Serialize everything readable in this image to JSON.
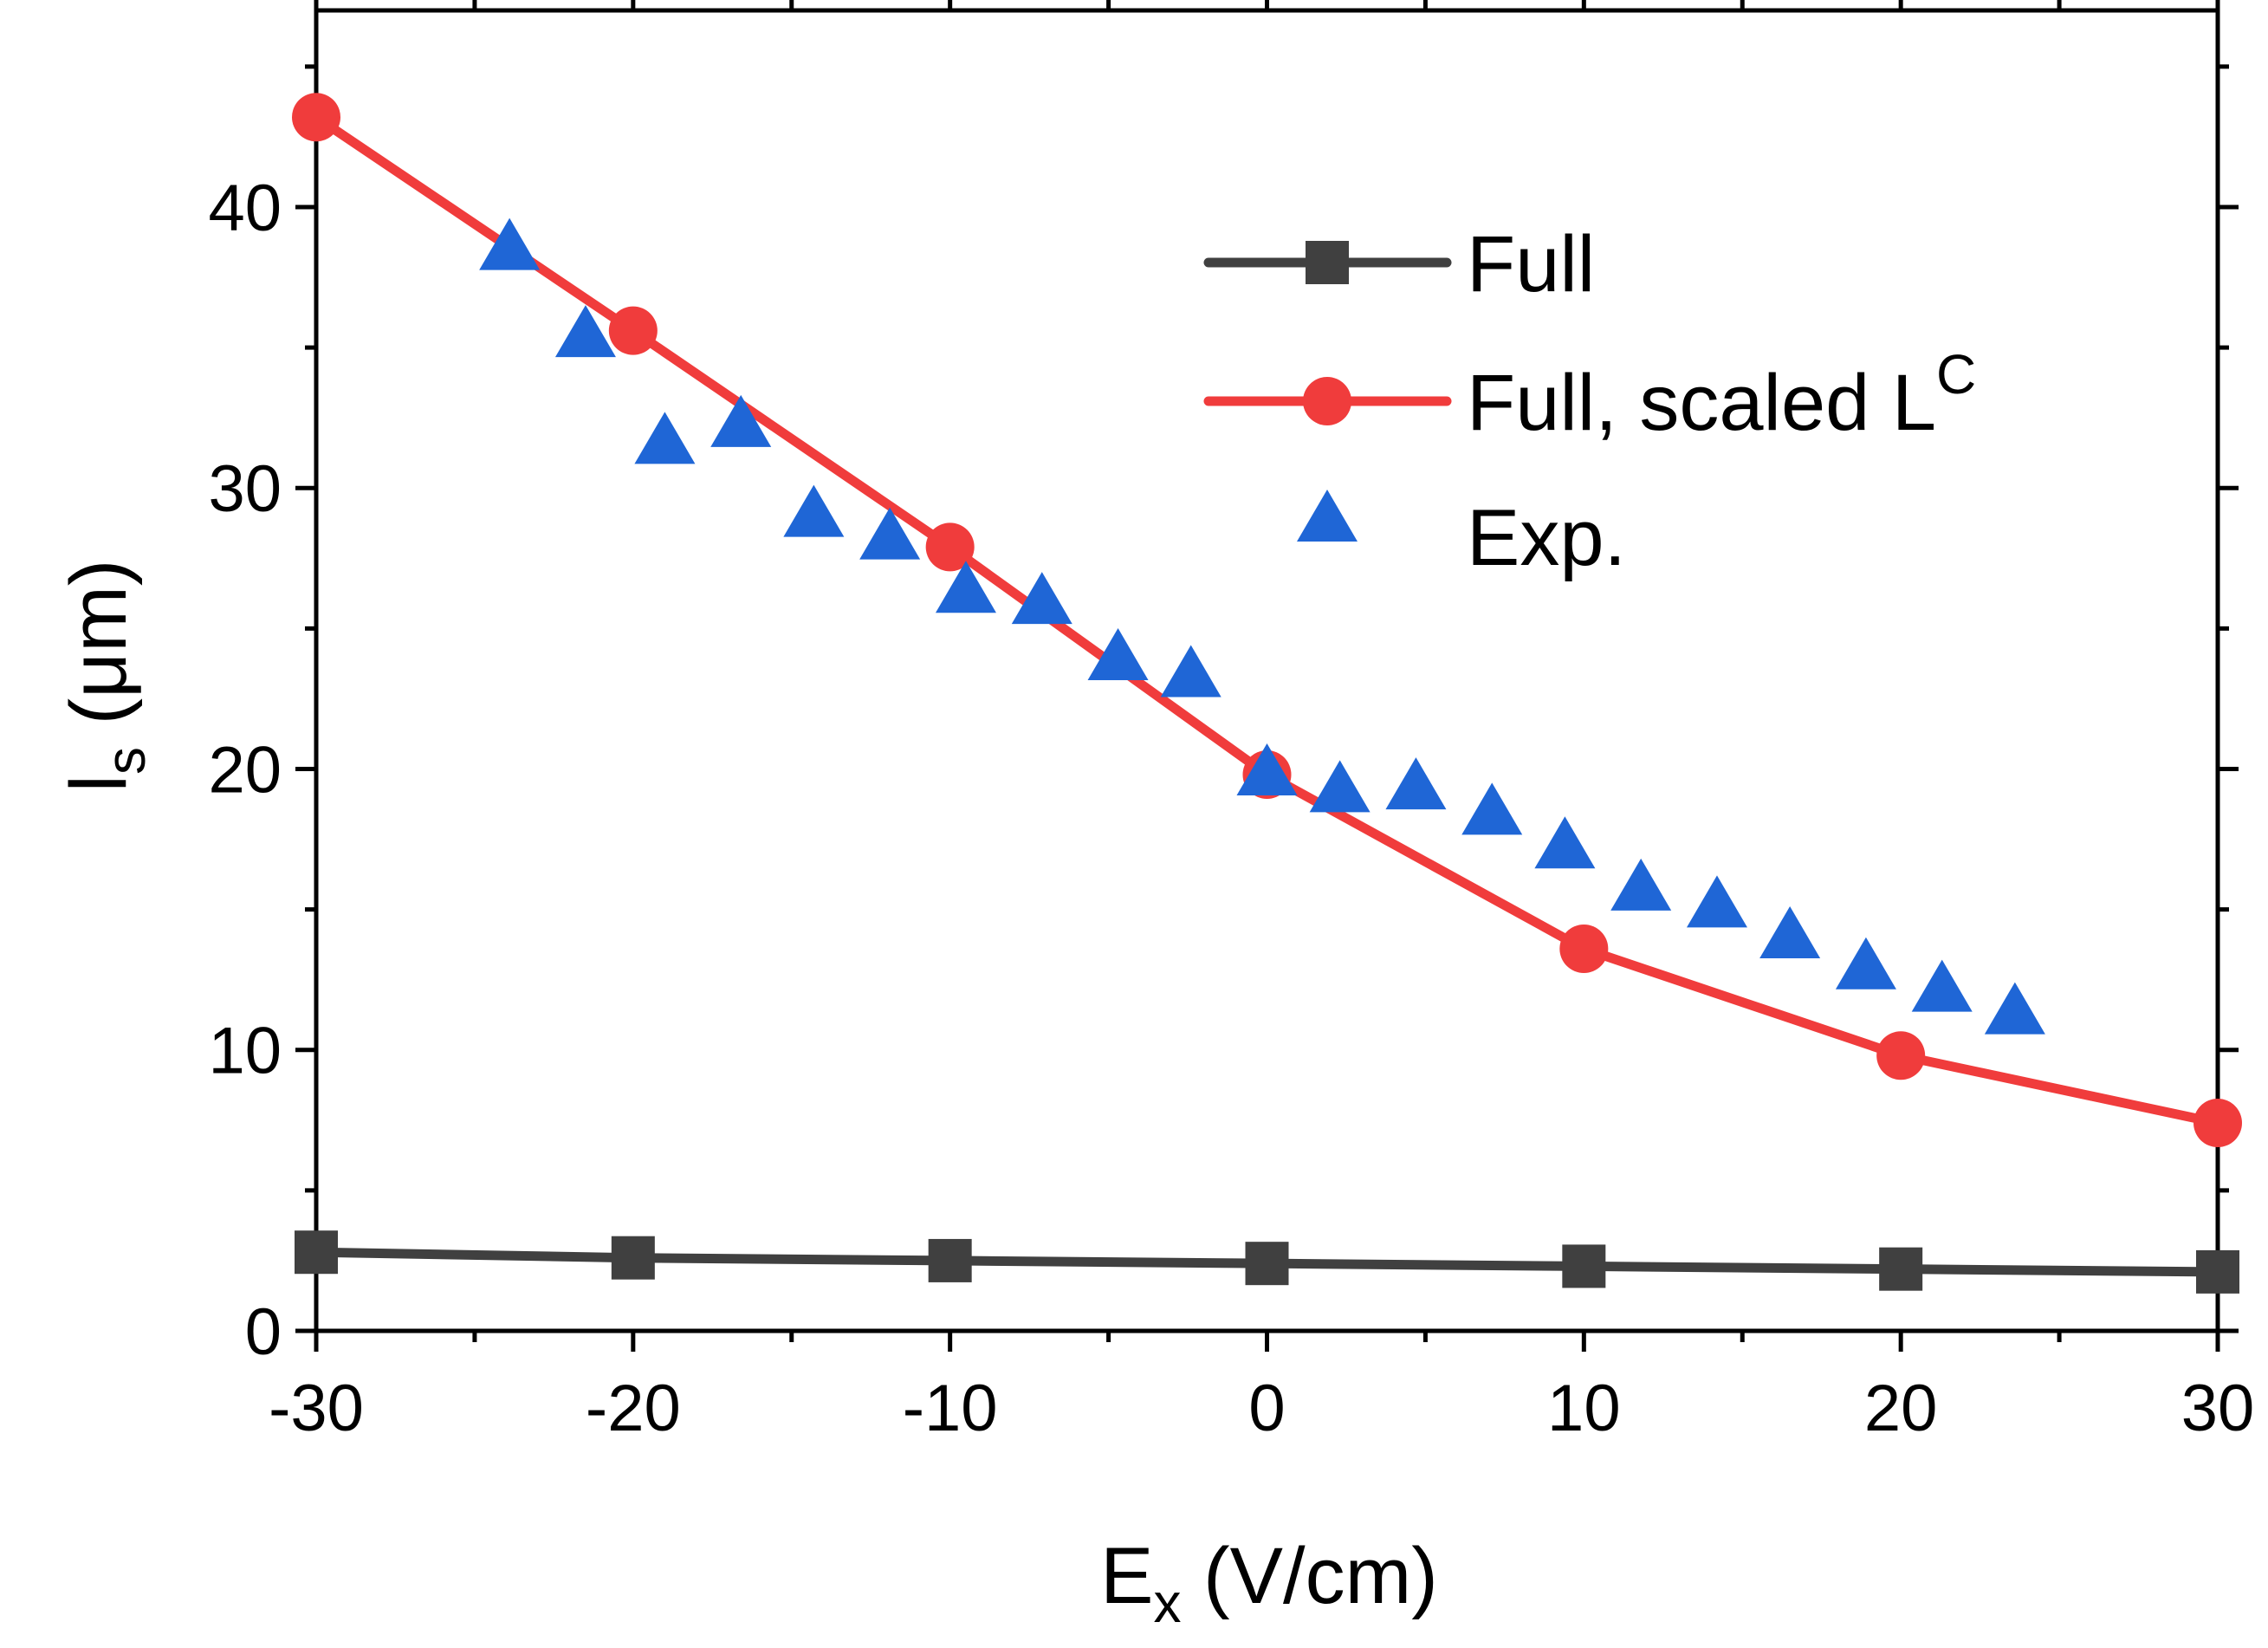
{
  "chart_data": {
    "type": "line",
    "xlabel": {
      "main": "E",
      "sub": "x",
      "rest": " (V/cm)"
    },
    "ylabel": {
      "main": "l",
      "sub": "s",
      "rest": " (μm)"
    },
    "xlim": [
      -30,
      30
    ],
    "ylim": [
      0,
      47
    ],
    "x_ticks": [
      -30,
      -20,
      -10,
      0,
      10,
      20,
      30
    ],
    "x_tick_labels": [
      "-30",
      "-20",
      "-10",
      "0",
      "10",
      "20",
      "30"
    ],
    "y_ticks": [
      0,
      10,
      20,
      30,
      40
    ],
    "y_tick_labels": [
      "0",
      "10",
      "20",
      "30",
      "40"
    ],
    "x_minor_step": 5,
    "y_minor_step": 5,
    "grid": false,
    "legend_position": "top-right",
    "series": [
      {
        "name": "Full",
        "marker": "square",
        "line": true,
        "color": "#404040",
        "x": [
          -30,
          -20,
          -10,
          0,
          10,
          20,
          30
        ],
        "y": [
          2.8,
          2.6,
          2.5,
          2.4,
          2.3,
          2.2,
          2.1
        ]
      },
      {
        "name": "Full, scaled L",
        "name_sup": "C",
        "marker": "circle",
        "line": true,
        "color": "#f03c3c",
        "x": [
          -30,
          -20,
          -10,
          0,
          10,
          20,
          30
        ],
        "y": [
          43.2,
          35.6,
          27.9,
          19.8,
          13.6,
          9.8,
          7.4
        ]
      },
      {
        "name": "Exp.",
        "marker": "triangle",
        "line": false,
        "color": "#1f66d6",
        "x": [
          -23.9,
          -21.5,
          -19.0,
          -16.6,
          -14.3,
          -11.9,
          -9.5,
          -7.1,
          -4.7,
          -2.4,
          0,
          2.3,
          4.7,
          7.1,
          9.4,
          11.8,
          14.2,
          16.5,
          18.9,
          21.3,
          23.6
        ],
        "y": [
          38.5,
          35.4,
          31.6,
          32.2,
          29.0,
          28.2,
          26.3,
          25.9,
          23.9,
          23.3,
          19.8,
          19.2,
          19.3,
          18.4,
          17.2,
          15.7,
          15.1,
          14.0,
          12.9,
          12.1,
          11.3
        ]
      }
    ]
  }
}
